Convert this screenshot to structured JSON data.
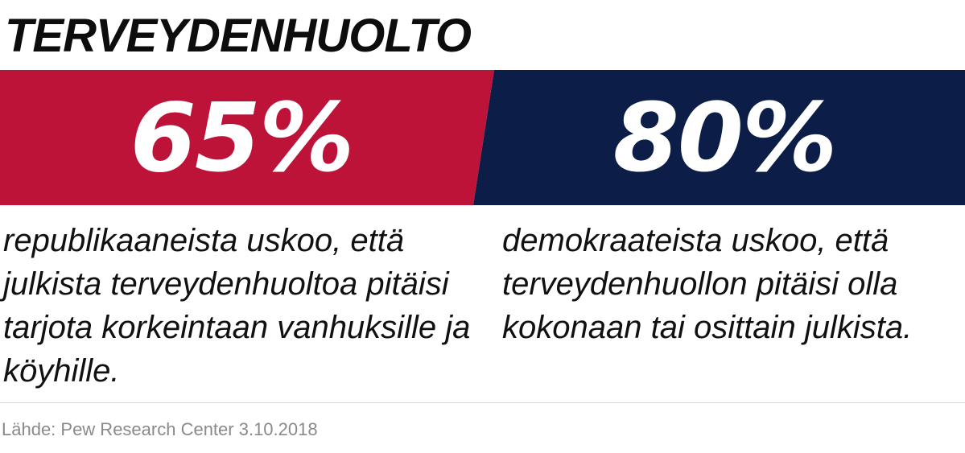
{
  "title": "TERVEYDENHUOLTO",
  "colors": {
    "republican": "#be1339",
    "democrat": "#0c1e48",
    "text": "#111111",
    "source": "#8a8a8a"
  },
  "stats": [
    {
      "value": "65%",
      "description": "republikaaneista uskoo, että julkista terveydenhuoltoa pitäisi tarjota korkeintaan vanhuksille ja köyhille."
    },
    {
      "value": "80%",
      "description": "demokraateista uskoo, että terveydenhuollon pitäisi olla kokonaan tai osittain julkista."
    }
  ],
  "source": "Lähde: Pew Research Center 3.10.2018"
}
